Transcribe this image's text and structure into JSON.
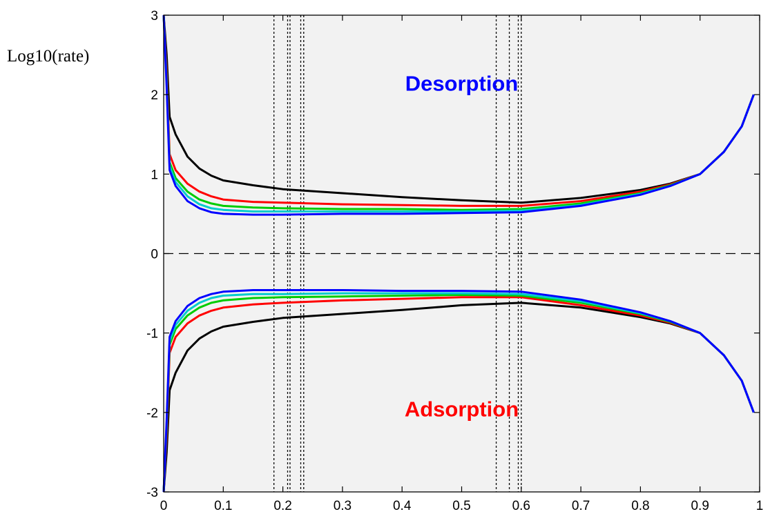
{
  "ylabel": "Log10(rate)",
  "annotations": [
    {
      "text": "Desorption",
      "color": "#0000ff",
      "x": 0.5,
      "y": 2.05
    },
    {
      "text": "Adsorption",
      "color": "#ff0000",
      "x": 0.5,
      "y": -2.05
    }
  ],
  "chart_data": {
    "type": "line",
    "title": "",
    "xlabel": "",
    "ylabel": "Log10(rate)",
    "xlim": [
      0,
      1
    ],
    "ylim": [
      -3,
      3
    ],
    "xticks": [
      0,
      0.1,
      0.2,
      0.3,
      0.4,
      0.5,
      0.6,
      0.7,
      0.8,
      0.9,
      1
    ],
    "xtick_labels": [
      "0",
      "0.1",
      "0.2",
      "0.3",
      "0.4",
      "0.5",
      "0.6",
      "0.7",
      "0.8",
      "0.9",
      "1"
    ],
    "yticks": [
      -3,
      -2,
      -1,
      0,
      1,
      2,
      3
    ],
    "ytick_labels": [
      "-3",
      "-2",
      "-1",
      "0",
      "1",
      "2",
      "3"
    ],
    "grid": false,
    "legend": "none",
    "background": "#f2f2f2",
    "reference_lines": {
      "horizontal_dashed": [
        0
      ],
      "vertical_dotted": [
        0.185,
        0.208,
        0.212,
        0.23,
        0.235,
        0.558,
        0.58,
        0.595,
        0.6
      ]
    },
    "series": [
      {
        "group": "desorption",
        "color": "#000000",
        "x": [
          0,
          0.005,
          0.01,
          0.02,
          0.04,
          0.06,
          0.08,
          0.1,
          0.15,
          0.2,
          0.3,
          0.4,
          0.5,
          0.6,
          0.7,
          0.8,
          0.85,
          0.9,
          0.94,
          0.97,
          0.99
        ],
        "y": [
          3,
          2.5,
          1.72,
          1.5,
          1.22,
          1.07,
          0.98,
          0.92,
          0.86,
          0.81,
          0.76,
          0.71,
          0.67,
          0.64,
          0.7,
          0.8,
          0.88,
          1.0,
          1.28,
          1.6,
          2.0
        ]
      },
      {
        "group": "desorption",
        "color": "#ff0000",
        "x": [
          0,
          0.005,
          0.01,
          0.02,
          0.04,
          0.06,
          0.08,
          0.1,
          0.15,
          0.2,
          0.3,
          0.4,
          0.5,
          0.6,
          0.7,
          0.8,
          0.85,
          0.9,
          0.94,
          0.97,
          0.99
        ],
        "y": [
          3,
          2.3,
          1.25,
          1.05,
          0.88,
          0.78,
          0.72,
          0.68,
          0.65,
          0.64,
          0.62,
          0.61,
          0.6,
          0.6,
          0.66,
          0.78,
          0.87,
          1.0,
          1.28,
          1.6,
          2.0
        ]
      },
      {
        "group": "desorption",
        "color": "#00cc00",
        "x": [
          0,
          0.005,
          0.01,
          0.02,
          0.04,
          0.06,
          0.08,
          0.1,
          0.15,
          0.2,
          0.3,
          0.4,
          0.5,
          0.6,
          0.7,
          0.8,
          0.85,
          0.9,
          0.94,
          0.97,
          0.99
        ],
        "y": [
          3,
          2.2,
          1.15,
          0.95,
          0.78,
          0.68,
          0.63,
          0.6,
          0.58,
          0.57,
          0.56,
          0.56,
          0.55,
          0.56,
          0.63,
          0.76,
          0.86,
          1.0,
          1.28,
          1.6,
          2.0
        ]
      },
      {
        "group": "desorption",
        "color": "#00cccc",
        "x": [
          0,
          0.005,
          0.01,
          0.02,
          0.04,
          0.06,
          0.08,
          0.1,
          0.15,
          0.2,
          0.3,
          0.4,
          0.5,
          0.6,
          0.7,
          0.8,
          0.85,
          0.9,
          0.94,
          0.97,
          0.99
        ],
        "y": [
          3,
          2.15,
          1.1,
          0.9,
          0.72,
          0.62,
          0.57,
          0.55,
          0.53,
          0.53,
          0.53,
          0.53,
          0.53,
          0.54,
          0.61,
          0.75,
          0.85,
          1.0,
          1.28,
          1.6,
          2.0
        ]
      },
      {
        "group": "desorption",
        "color": "#0000ff",
        "x": [
          0,
          0.005,
          0.01,
          0.02,
          0.04,
          0.06,
          0.08,
          0.1,
          0.15,
          0.2,
          0.3,
          0.4,
          0.5,
          0.6,
          0.7,
          0.8,
          0.85,
          0.9,
          0.94,
          0.97,
          0.99
        ],
        "y": [
          3,
          2.1,
          1.05,
          0.85,
          0.66,
          0.57,
          0.52,
          0.5,
          0.49,
          0.49,
          0.5,
          0.5,
          0.51,
          0.52,
          0.6,
          0.74,
          0.85,
          1.0,
          1.28,
          1.6,
          2.0
        ]
      },
      {
        "group": "adsorption",
        "color": "#000000",
        "x": [
          0,
          0.005,
          0.01,
          0.02,
          0.04,
          0.06,
          0.08,
          0.1,
          0.15,
          0.2,
          0.3,
          0.4,
          0.5,
          0.6,
          0.7,
          0.8,
          0.85,
          0.9,
          0.94,
          0.97,
          0.99
        ],
        "y": [
          -3,
          -2.5,
          -1.72,
          -1.5,
          -1.22,
          -1.07,
          -0.98,
          -0.92,
          -0.86,
          -0.81,
          -0.76,
          -0.71,
          -0.65,
          -0.62,
          -0.68,
          -0.8,
          -0.88,
          -1.0,
          -1.28,
          -1.6,
          -2.0
        ]
      },
      {
        "group": "adsorption",
        "color": "#ff0000",
        "x": [
          0,
          0.005,
          0.01,
          0.02,
          0.04,
          0.06,
          0.08,
          0.1,
          0.15,
          0.2,
          0.3,
          0.4,
          0.5,
          0.6,
          0.7,
          0.8,
          0.85,
          0.9,
          0.94,
          0.97,
          0.99
        ],
        "y": [
          -3,
          -2.3,
          -1.25,
          -1.05,
          -0.88,
          -0.78,
          -0.72,
          -0.68,
          -0.64,
          -0.62,
          -0.59,
          -0.57,
          -0.55,
          -0.55,
          -0.65,
          -0.78,
          -0.87,
          -1.0,
          -1.28,
          -1.6,
          -2.0
        ]
      },
      {
        "group": "adsorption",
        "color": "#00cc00",
        "x": [
          0,
          0.005,
          0.01,
          0.02,
          0.04,
          0.06,
          0.08,
          0.1,
          0.15,
          0.2,
          0.3,
          0.4,
          0.5,
          0.6,
          0.7,
          0.8,
          0.85,
          0.9,
          0.94,
          0.97,
          0.99
        ],
        "y": [
          -3,
          -2.2,
          -1.15,
          -0.95,
          -0.78,
          -0.68,
          -0.62,
          -0.59,
          -0.56,
          -0.55,
          -0.54,
          -0.53,
          -0.52,
          -0.53,
          -0.62,
          -0.76,
          -0.86,
          -1.0,
          -1.28,
          -1.6,
          -2.0
        ]
      },
      {
        "group": "adsorption",
        "color": "#00cccc",
        "x": [
          0,
          0.005,
          0.01,
          0.02,
          0.04,
          0.06,
          0.08,
          0.1,
          0.15,
          0.2,
          0.3,
          0.4,
          0.5,
          0.6,
          0.7,
          0.8,
          0.85,
          0.9,
          0.94,
          0.97,
          0.99
        ],
        "y": [
          -3,
          -2.15,
          -1.1,
          -0.9,
          -0.72,
          -0.62,
          -0.56,
          -0.53,
          -0.51,
          -0.51,
          -0.5,
          -0.5,
          -0.5,
          -0.51,
          -0.6,
          -0.75,
          -0.85,
          -1.0,
          -1.28,
          -1.6,
          -2.0
        ]
      },
      {
        "group": "adsorption",
        "color": "#0000ff",
        "x": [
          0,
          0.005,
          0.01,
          0.02,
          0.04,
          0.06,
          0.08,
          0.1,
          0.15,
          0.2,
          0.3,
          0.4,
          0.5,
          0.6,
          0.7,
          0.8,
          0.85,
          0.9,
          0.94,
          0.97,
          0.99
        ],
        "y": [
          -3,
          -2.1,
          -1.05,
          -0.85,
          -0.66,
          -0.56,
          -0.51,
          -0.48,
          -0.46,
          -0.46,
          -0.46,
          -0.47,
          -0.47,
          -0.48,
          -0.58,
          -0.74,
          -0.85,
          -1.0,
          -1.28,
          -1.6,
          -2.0
        ]
      }
    ]
  }
}
